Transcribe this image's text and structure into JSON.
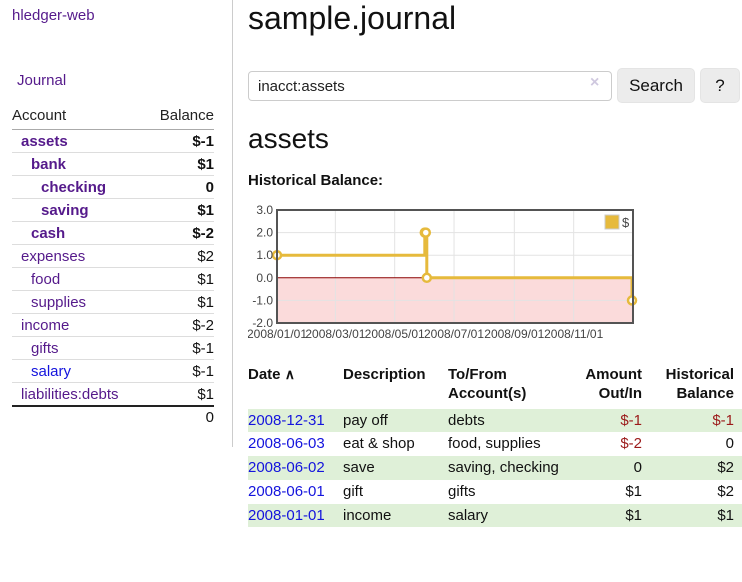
{
  "app": {
    "brand": "hledger-web",
    "nav_journal": "Journal"
  },
  "sidebar": {
    "accounts_header": {
      "account": "Account",
      "balance": "Balance"
    },
    "accounts": [
      {
        "name": "assets",
        "balance": "$-1",
        "indent": 1,
        "bold": true,
        "neg": "strong",
        "link": "visited"
      },
      {
        "name": "bank",
        "balance": "$1",
        "indent": 2,
        "bold": true,
        "neg": null,
        "link": "visited"
      },
      {
        "name": "checking",
        "balance": "0",
        "indent": 3,
        "bold": true,
        "neg": null,
        "link": "visited"
      },
      {
        "name": "saving",
        "balance": "$1",
        "indent": 3,
        "bold": true,
        "neg": null,
        "link": "visited"
      },
      {
        "name": "cash",
        "balance": "$-2",
        "indent": 2,
        "bold": true,
        "neg": "strong",
        "link": "visited"
      },
      {
        "name": "expenses",
        "balance": "$2",
        "indent": 1,
        "bold": false,
        "neg": null,
        "link": "visited"
      },
      {
        "name": "food",
        "balance": "$1",
        "indent": 2,
        "bold": false,
        "neg": null,
        "link": "visited"
      },
      {
        "name": "supplies",
        "balance": "$1",
        "indent": 2,
        "bold": false,
        "neg": null,
        "link": "visited"
      },
      {
        "name": "income",
        "balance": "$-2",
        "indent": 1,
        "bold": false,
        "neg": "muted",
        "link": "visited"
      },
      {
        "name": "gifts",
        "balance": "$-1",
        "indent": 2,
        "bold": false,
        "neg": "muted",
        "link": "visited"
      },
      {
        "name": "salary",
        "balance": "$-1",
        "indent": 2,
        "bold": false,
        "neg": "muted",
        "link": "new"
      },
      {
        "name": "liabilities:debts",
        "balance": "$1",
        "indent": 1,
        "bold": false,
        "neg": null,
        "link": "visited"
      }
    ],
    "total": "0"
  },
  "header": {
    "title": "sample.journal"
  },
  "search": {
    "value": "inacct:assets",
    "clear_icon": "×",
    "button": "Search",
    "help_button": "?"
  },
  "account_page": {
    "title": "assets",
    "chart_heading": "Historical Balance:"
  },
  "chart_data": {
    "type": "line",
    "step": true,
    "title": "Historical Balance",
    "series": [
      {
        "name": "$",
        "color": "#e6ba3c",
        "points": [
          [
            "2008-01-01",
            1
          ],
          [
            "2008-06-01",
            2
          ],
          [
            "2008-06-02",
            2
          ],
          [
            "2008-06-03",
            0
          ],
          [
            "2008-12-31",
            -1
          ]
        ]
      }
    ],
    "xlim": [
      "2008-01-01",
      "2009-01-01"
    ],
    "ylim": [
      -2,
      3
    ],
    "yticks": [
      3.0,
      2.0,
      1.0,
      0.0,
      -1.0,
      -2.0
    ],
    "xticks": [
      "2008/01/01",
      "2008/03/01",
      "2008/05/01",
      "2008/07/01",
      "2008/09/01",
      "2008/11/01"
    ],
    "legend": {
      "label": "$",
      "position": "top-right"
    },
    "grid": true,
    "negative_region_fill": "#fbdbdb",
    "zero_line_color": "#8b0000",
    "border_color": "#545454",
    "grid_color": "#e3e3e3"
  },
  "register": {
    "columns": [
      "Date",
      "Description",
      "To/From Account(s)",
      "Amount Out/In",
      "Historical Balance"
    ],
    "sort_icon": "∧",
    "rows": [
      {
        "date": "2008-12-31",
        "description": "pay off",
        "accounts": "debts",
        "amount": "$-1",
        "balance": "$-1"
      },
      {
        "date": "2008-06-03",
        "description": "eat & shop",
        "accounts": "food, supplies",
        "amount": "$-2",
        "balance": "0"
      },
      {
        "date": "2008-06-02",
        "description": "save",
        "accounts": "saving, checking",
        "amount": "0",
        "balance": "$2"
      },
      {
        "date": "2008-06-01",
        "description": "gift",
        "accounts": "gifts",
        "amount": "$1",
        "balance": "$2"
      },
      {
        "date": "2008-01-01",
        "description": "income",
        "accounts": "salary",
        "amount": "$1",
        "balance": "$1"
      }
    ]
  }
}
